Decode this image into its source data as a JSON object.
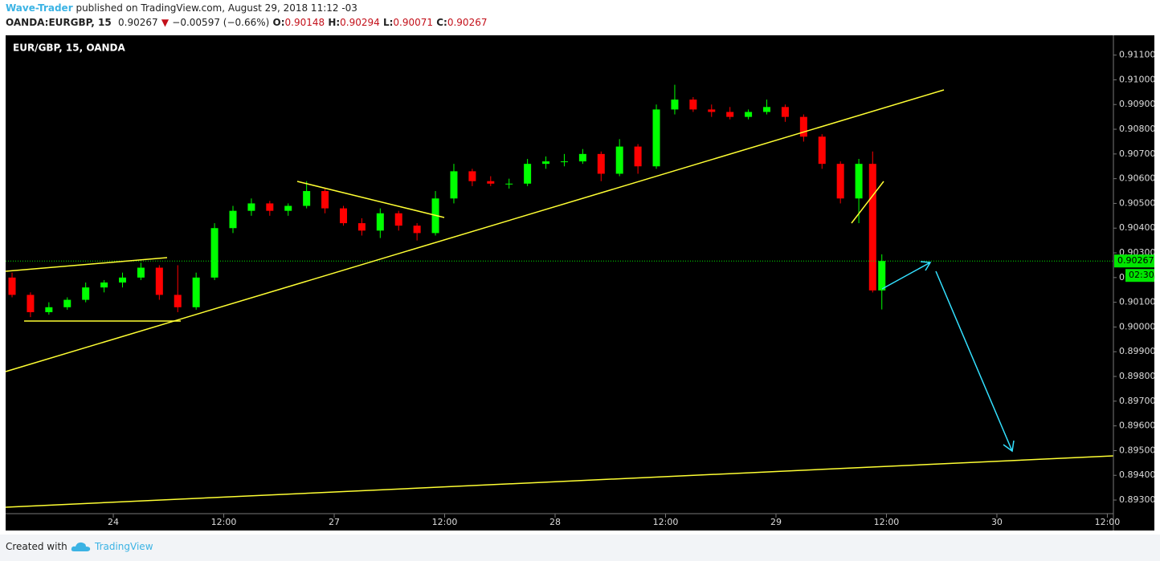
{
  "header": {
    "author": "Wave-Trader",
    "published": "published on TradingView.com, August 29, 2018 11:12 -03",
    "symbol": "OANDA:EURGBP, 15",
    "change_arrow": "▼",
    "change": "−0.00597 (−0.66%)",
    "o": "O:",
    "h": "H:",
    "l": "L:",
    "c": "C:"
  },
  "chart_data": {
    "type": "candlestick",
    "title": "EUR/GBP, 15, OANDA",
    "x": [
      -11,
      -9,
      -7,
      -5,
      -3,
      -1,
      1,
      3,
      5,
      7,
      9,
      11,
      13,
      15,
      17,
      19,
      21,
      23,
      25,
      27,
      29,
      31,
      33,
      35,
      37,
      39,
      41,
      43,
      45,
      47,
      49,
      51,
      53,
      55,
      57,
      59,
      61,
      63,
      65,
      67,
      69,
      71,
      73,
      75,
      77,
      79,
      81,
      82.5,
      83.5
    ],
    "open": [
      0.902,
      0.9013,
      0.9006,
      0.9008,
      0.9011,
      0.9016,
      0.9018,
      0.902,
      0.9024,
      0.9013,
      0.9008,
      0.902,
      0.904,
      0.9047,
      0.905,
      0.9047,
      0.9049,
      0.9055,
      0.9048,
      0.9042,
      0.9039,
      0.9046,
      0.9041,
      0.9038,
      0.9052,
      0.9063,
      0.9059,
      0.9058,
      0.9058,
      0.9066,
      0.9067,
      0.9067,
      0.907,
      0.9062,
      0.9073,
      0.9065,
      0.9088,
      0.9092,
      0.9088,
      0.9087,
      0.9085,
      0.9087,
      0.9089,
      0.9085,
      0.9077,
      0.9066,
      0.9052,
      0.9066,
      0.90148
    ],
    "high": [
      0.9022,
      0.9014,
      0.901,
      0.9012,
      0.9018,
      0.9019,
      0.9022,
      0.9026,
      0.9025,
      0.9025,
      0.9022,
      0.9042,
      0.9049,
      0.9052,
      0.9051,
      0.905,
      0.9059,
      0.9056,
      0.9049,
      0.9044,
      0.9048,
      0.9047,
      0.9042,
      0.9055,
      0.9066,
      0.9064,
      0.9061,
      0.906,
      0.9068,
      0.9069,
      0.907,
      0.9072,
      0.9071,
      0.9076,
      0.9074,
      0.909,
      0.9098,
      0.9093,
      0.909,
      0.9089,
      0.9088,
      0.9092,
      0.909,
      0.9086,
      0.9078,
      0.9067,
      0.9068,
      0.9071,
      0.90294
    ],
    "low": [
      0.9012,
      0.9004,
      0.9005,
      0.9007,
      0.901,
      0.9014,
      0.9016,
      0.9019,
      0.9011,
      0.9006,
      0.9007,
      0.9019,
      0.9038,
      0.9045,
      0.9045,
      0.9045,
      0.9048,
      0.9046,
      0.9041,
      0.9037,
      0.9036,
      0.9039,
      0.9035,
      0.9037,
      0.905,
      0.9057,
      0.9057,
      0.9056,
      0.9057,
      0.9064,
      0.9065,
      0.9066,
      0.9059,
      0.9061,
      0.9062,
      0.9064,
      0.9086,
      0.9087,
      0.9085,
      0.9084,
      0.9084,
      0.9086,
      0.9083,
      0.9075,
      0.9064,
      0.905,
      0.9042,
      0.9014,
      0.90071
    ],
    "close": [
      0.9013,
      0.9006,
      0.9008,
      0.9011,
      0.9016,
      0.9018,
      0.902,
      0.9024,
      0.9013,
      0.9008,
      0.902,
      0.904,
      0.9047,
      0.905,
      0.9047,
      0.9049,
      0.9055,
      0.9048,
      0.9042,
      0.9039,
      0.9046,
      0.9041,
      0.9038,
      0.9052,
      0.9063,
      0.9059,
      0.9058,
      0.9058,
      0.9066,
      0.9067,
      0.9067,
      0.907,
      0.9062,
      0.9073,
      0.9065,
      0.9088,
      0.9092,
      0.9088,
      0.9087,
      0.9085,
      0.9087,
      0.9089,
      0.9085,
      0.9077,
      0.9066,
      0.9052,
      0.9066,
      0.90148,
      0.90267
    ],
    "up_color": "#00ff00",
    "down_color": "#ff0000",
    "xlim": [
      -11.7,
      108.66
    ],
    "xticks": [
      {
        "value": 0,
        "label": "24"
      },
      {
        "value": 12,
        "label": "12:00"
      },
      {
        "value": 24,
        "label": "27"
      },
      {
        "value": 36,
        "label": "12:00"
      },
      {
        "value": 48,
        "label": "28"
      },
      {
        "value": 60,
        "label": "12:00"
      },
      {
        "value": 72,
        "label": "29"
      },
      {
        "value": 84,
        "label": "12:00"
      },
      {
        "value": 96,
        "label": "30"
      },
      {
        "value": 108,
        "label": "12:00"
      }
    ],
    "ylim": [
      0.8918,
      0.9118
    ],
    "yticks": [
      {
        "value": 0.893,
        "label": "0.89300"
      },
      {
        "value": 0.894,
        "label": "0.89400"
      },
      {
        "value": 0.895,
        "label": "0.89500"
      },
      {
        "value": 0.896,
        "label": "0.89600"
      },
      {
        "value": 0.897,
        "label": "0.89700"
      },
      {
        "value": 0.898,
        "label": "0.89800"
      },
      {
        "value": 0.899,
        "label": "0.89900"
      },
      {
        "value": 0.9,
        "label": "0.90000"
      },
      {
        "value": 0.901,
        "label": "0.90100"
      },
      {
        "value": 0.902,
        "label": "0.90200"
      },
      {
        "value": 0.903,
        "label": "0.90300"
      },
      {
        "value": 0.904,
        "label": "0.90400"
      },
      {
        "value": 0.905,
        "label": "0.90500"
      },
      {
        "value": 0.906,
        "label": "0.90600"
      },
      {
        "value": 0.907,
        "label": "0.90700"
      },
      {
        "value": 0.908,
        "label": "0.90800"
      },
      {
        "value": 0.909,
        "label": "0.90900"
      },
      {
        "value": 0.91,
        "label": "0.91000"
      },
      {
        "value": 0.911,
        "label": "0.91100"
      }
    ],
    "countdown": "02:30",
    "last_price_color": "#00e600"
  },
  "footer": {
    "created": "Created with",
    "brand": "TradingView"
  }
}
